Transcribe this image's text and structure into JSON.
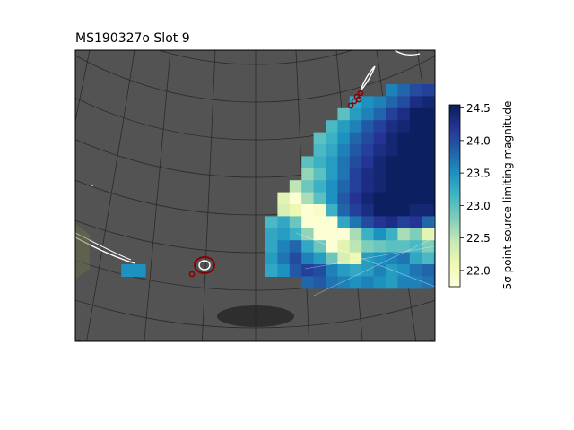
{
  "chart_data": {
    "type": "heatmap",
    "title": "MS190327o Slot 9",
    "xlabel": "",
    "ylabel": "",
    "grid": true,
    "colorbar": {
      "label": "5σ point source limiting magnitude",
      "range": [
        21.75,
        24.55
      ],
      "ticks": [
        "22.0",
        "22.5",
        "23.0",
        "23.5",
        "24.0",
        "24.5"
      ],
      "tick_values": [
        22.0,
        22.5,
        23.0,
        23.5,
        24.0,
        24.5
      ],
      "colormap": [
        "#ffffd9",
        "#edf8b1",
        "#c7e9b4",
        "#7fcdbb",
        "#41b6c4",
        "#1d91c0",
        "#225ea8",
        "#253494",
        "#081d58"
      ]
    },
    "colors": {
      "background": "#535353",
      "grid": "#2a2a2a",
      "contour": "#ffffff",
      "marker": "#8b0000",
      "shadow": "#222222"
    }
  }
}
